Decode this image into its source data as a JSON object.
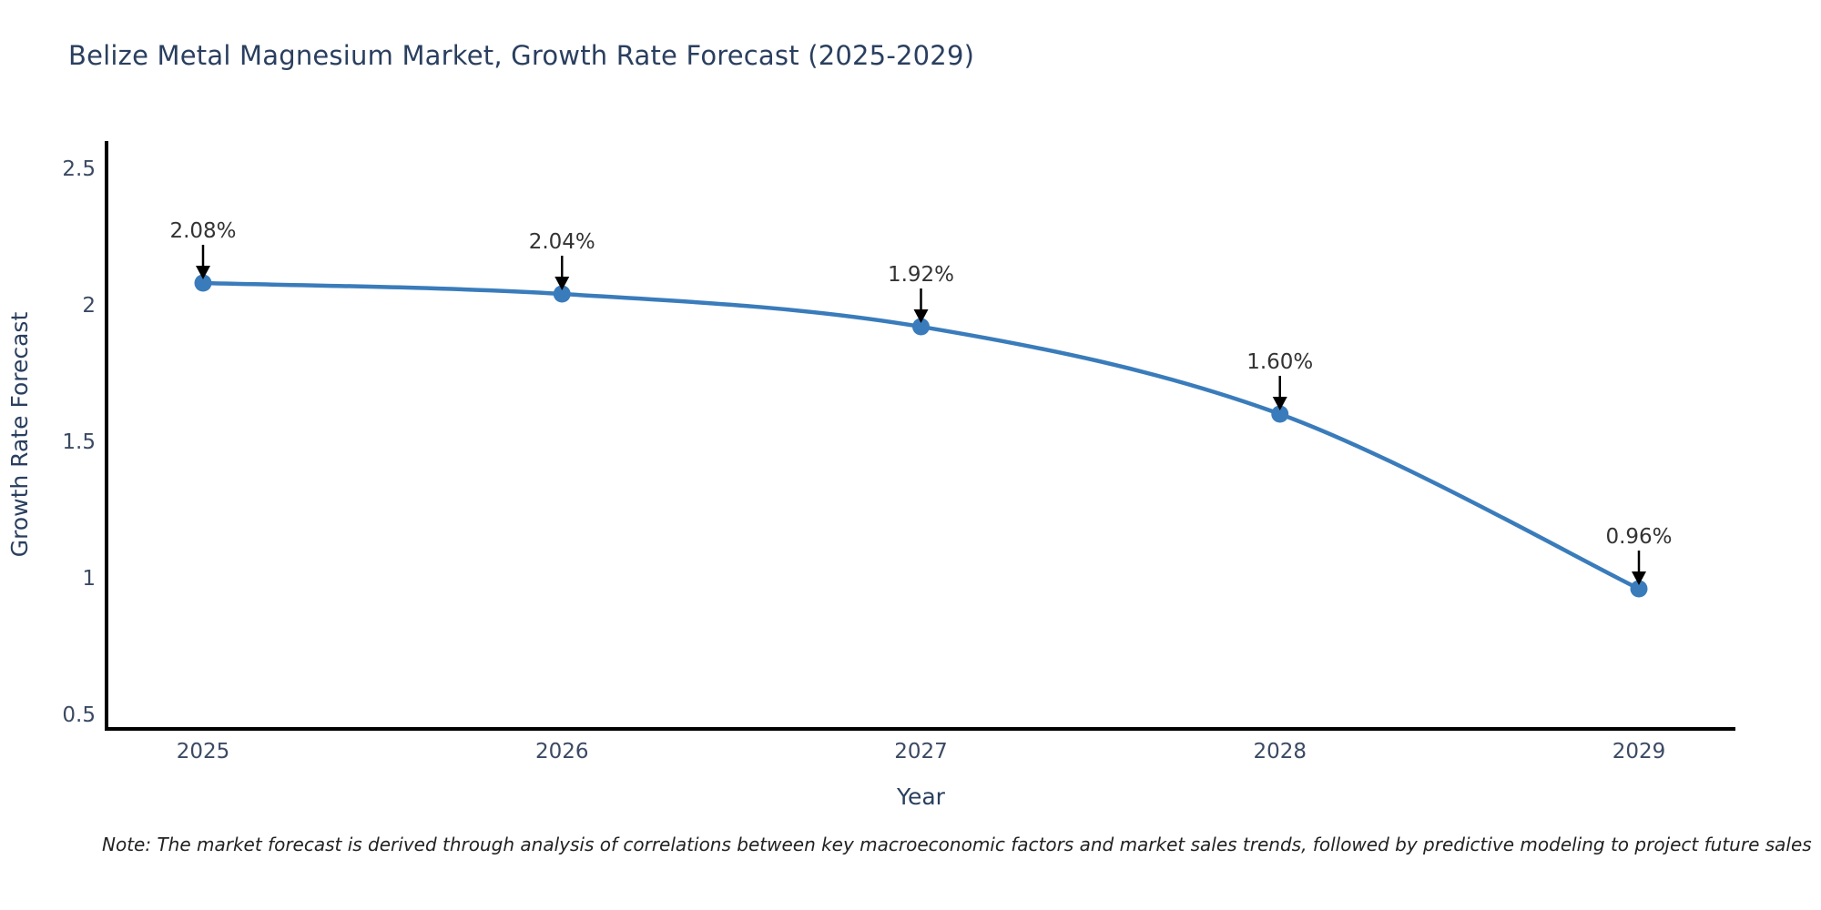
{
  "title": "Belize Metal Magnesium Market, Growth Rate Forecast (2025-2029)",
  "note": "Note: The market forecast is derived through analysis of correlations between key macroeconomic factors and market sales trends, followed by predictive modeling to project future sales",
  "chart_data": {
    "type": "line",
    "categories": [
      "2025",
      "2026",
      "2027",
      "2028",
      "2029"
    ],
    "x": [
      2025,
      2026,
      2027,
      2028,
      2029
    ],
    "values": [
      2.08,
      2.04,
      1.92,
      1.6,
      0.96
    ],
    "point_labels": [
      "2.08%",
      "2.04%",
      "1.92%",
      "1.60%",
      "0.96%"
    ],
    "title": "Belize Metal Magnesium Market, Growth Rate Forecast (2025-2029)",
    "xlabel": "Year",
    "ylabel": "Growth Rate Forecast",
    "yticks": [
      0.5,
      1,
      1.5,
      2,
      2.5
    ],
    "ytick_labels": [
      "0.5",
      "1",
      "1.5",
      "2",
      "2.5"
    ],
    "ylim": [
      0.45,
      2.6
    ],
    "grid": false,
    "legend": "none",
    "line_color": "#3a7cbb",
    "marker_color": "#3a7cbb",
    "axis_color": "#000000",
    "annotation_text_color": "#333333",
    "annotation_arrow_color": "#000000",
    "axis_text_color": "#2a3f5f",
    "tick_text_color": "#3b4a63"
  }
}
